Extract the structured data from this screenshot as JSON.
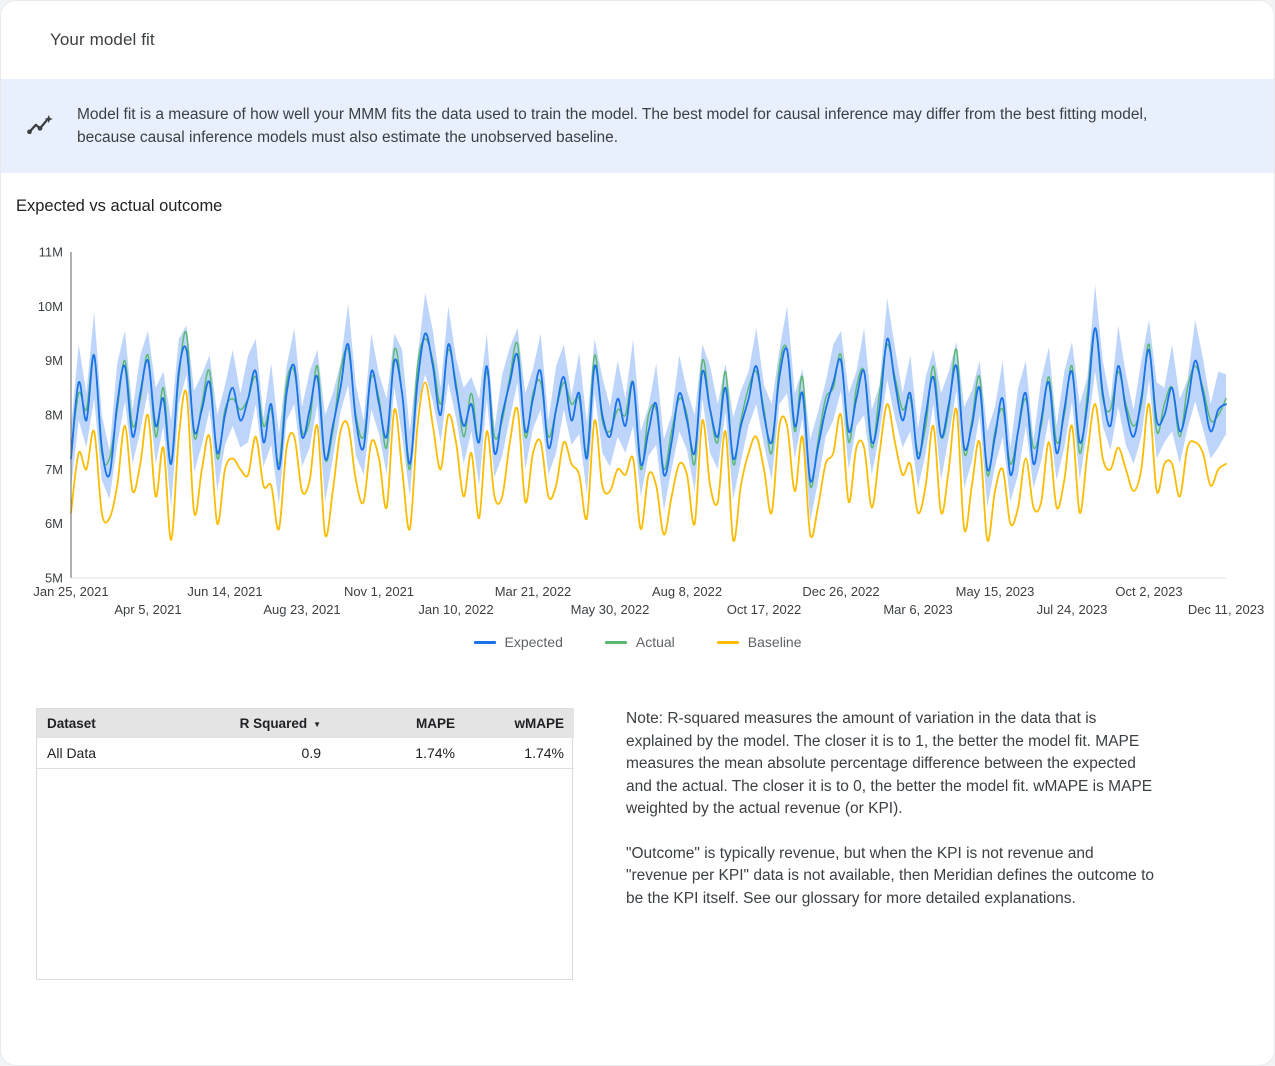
{
  "header": {
    "title": "Your model fit"
  },
  "banner": {
    "icon": "insights-icon",
    "background": "#e8f0fe",
    "text": "Model fit is a measure of how well your MMM fits the data used to train the model. The best model for causal inference may differ from the best fitting model, because causal inference models must also estimate the unobserved baseline."
  },
  "chart_section": {
    "title": "Expected vs actual outcome"
  },
  "chart_data": {
    "type": "line",
    "title": "Expected vs actual outcome",
    "x_unit": "week",
    "x_start": "Jan 25, 2021",
    "x_end": "Dec 11, 2023",
    "x_tick_labels": [
      "Jan 25, 2021",
      "Apr 5, 2021",
      "Jun 14, 2021",
      "Aug 23, 2021",
      "Nov 1, 2021",
      "Jan 10, 2022",
      "Mar 21, 2022",
      "May 30, 2022",
      "Aug 8, 2022",
      "Oct 17, 2022",
      "Dec 26, 2022",
      "Mar 6, 2023",
      "May 15, 2023",
      "Jul 24, 2023",
      "Oct 2, 2023",
      "Dec 11, 2023"
    ],
    "y_tick_labels": [
      "5M",
      "6M",
      "7M",
      "8M",
      "9M",
      "10M",
      "11M"
    ],
    "ylim": [
      5,
      11
    ],
    "y_unit": "millions",
    "grid": false,
    "legend_position": "bottom",
    "series": [
      {
        "name": "Expected",
        "color": "#1a73e8",
        "width": 1.8,
        "values": [
          7.2,
          8.6,
          7.9,
          9.1,
          7.4,
          6.9,
          8.2,
          8.9,
          7.6,
          8.4,
          9.0,
          7.8,
          8.3,
          7.1,
          8.8,
          9.2,
          7.7,
          8.1,
          8.6,
          7.3,
          8.0,
          8.5,
          7.9,
          8.3,
          8.8,
          7.5,
          8.2,
          7.0,
          8.4,
          8.9,
          7.6,
          8.1,
          8.7,
          7.2,
          7.8,
          8.5,
          9.3,
          7.9,
          7.4,
          8.8,
          8.2,
          7.6,
          9.0,
          8.4,
          7.1,
          8.6,
          9.5,
          8.9,
          8.0,
          9.3,
          8.5,
          7.8,
          8.2,
          7.5,
          8.9,
          7.3,
          8.0,
          8.6,
          9.1,
          7.7,
          8.3,
          8.8,
          7.4,
          8.1,
          8.7,
          7.9,
          8.4,
          7.2,
          8.9,
          8.0,
          7.6,
          8.3,
          7.8,
          8.6,
          7.1,
          7.7,
          8.2,
          6.9,
          7.5,
          8.4,
          7.9,
          7.3,
          8.8,
          8.1,
          7.6,
          8.5,
          7.2,
          7.8,
          8.3,
          8.9,
          8.0,
          7.5,
          8.7,
          9.2,
          7.8,
          8.4,
          6.8,
          7.4,
          8.1,
          8.6,
          9.0,
          7.7,
          8.3,
          8.8,
          7.5,
          8.1,
          9.4,
          8.6,
          7.9,
          8.4,
          7.2,
          8.0,
          8.7,
          7.6,
          8.2,
          8.9,
          7.4,
          7.8,
          8.5,
          7.0,
          7.6,
          8.3,
          6.9,
          7.7,
          8.4,
          7.1,
          7.9,
          8.6,
          7.3,
          8.1,
          8.8,
          7.5,
          8.2,
          9.6,
          8.4,
          7.8,
          8.9,
          8.1,
          7.6,
          8.3,
          9.2,
          7.9,
          8.0,
          8.5,
          7.7,
          8.2,
          9.0,
          8.4,
          7.7,
          8.1,
          8.2
        ]
      },
      {
        "name": "Actual",
        "color": "#5bb974",
        "width": 1.5,
        "values": [
          7.3,
          8.4,
          8.1,
          9.1,
          7.3,
          7.2,
          8.1,
          9.0,
          7.8,
          8.3,
          9.1,
          7.6,
          8.5,
          7.1,
          8.7,
          9.5,
          7.6,
          8.2,
          8.8,
          7.2,
          8.1,
          8.3,
          8.1,
          8.3,
          8.7,
          7.8,
          8.1,
          7.1,
          8.6,
          8.8,
          7.7,
          7.9,
          8.9,
          7.2,
          7.7,
          8.8,
          9.2,
          8.0,
          7.6,
          8.7,
          8.3,
          7.4,
          9.2,
          8.4,
          7.0,
          8.9,
          9.4,
          9.0,
          8.2,
          9.2,
          8.6,
          7.6,
          8.4,
          7.5,
          8.8,
          7.6,
          7.9,
          8.7,
          9.3,
          7.6,
          8.4,
          8.6,
          7.6,
          8.1,
          8.6,
          8.2,
          8.3,
          7.3,
          9.1,
          7.9,
          7.7,
          8.1,
          8.0,
          8.6,
          7.0,
          8.0,
          8.1,
          7.0,
          7.7,
          8.3,
          8.0,
          7.1,
          9.0,
          8.1,
          7.5,
          8.8,
          7.1,
          7.9,
          8.5,
          8.8,
          8.1,
          7.3,
          8.9,
          9.2,
          7.7,
          8.7,
          6.7,
          7.5,
          8.3,
          8.5,
          9.1,
          7.5,
          8.5,
          8.8,
          7.4,
          8.4,
          9.3,
          8.7,
          8.1,
          8.3,
          7.3,
          7.8,
          8.9,
          7.6,
          8.1,
          9.2,
          7.3,
          7.9,
          8.7,
          6.9,
          7.7,
          8.1,
          7.1,
          7.7,
          8.3,
          7.4,
          7.8,
          8.7,
          7.5,
          8.0,
          8.9,
          7.3,
          8.4,
          9.6,
          8.3,
          8.1,
          8.8,
          8.2,
          7.8,
          8.2,
          9.3,
          7.7,
          8.2,
          8.5,
          7.6,
          8.5,
          8.9,
          8.5,
          7.9,
          8.0,
          8.3
        ]
      },
      {
        "name": "Baseline",
        "color": "#fbbc04",
        "width": 1.8,
        "values": [
          6.2,
          7.3,
          7.0,
          7.7,
          6.2,
          6.1,
          6.7,
          7.8,
          6.6,
          7.1,
          8.0,
          6.5,
          7.4,
          5.7,
          7.6,
          8.4,
          6.2,
          7.0,
          7.6,
          6.0,
          7.0,
          7.2,
          7.0,
          6.9,
          7.6,
          6.7,
          6.7,
          5.9,
          7.4,
          7.6,
          6.6,
          6.8,
          7.8,
          5.8,
          6.6,
          7.7,
          7.8,
          6.8,
          6.4,
          7.5,
          7.2,
          6.3,
          8.1,
          7.0,
          5.9,
          7.8,
          8.6,
          7.8,
          7.0,
          8.0,
          7.5,
          6.5,
          7.3,
          6.1,
          7.7,
          6.5,
          6.5,
          7.5,
          8.1,
          6.4,
          7.3,
          7.5,
          6.5,
          6.7,
          7.5,
          7.1,
          6.9,
          6.1,
          7.9,
          6.7,
          6.6,
          7.0,
          6.9,
          7.2,
          5.9,
          6.9,
          6.7,
          5.8,
          6.5,
          7.1,
          6.9,
          6.0,
          7.9,
          6.7,
          6.4,
          7.7,
          5.7,
          6.7,
          7.3,
          7.6,
          7.0,
          6.2,
          7.8,
          7.8,
          6.6,
          7.6,
          5.8,
          6.3,
          7.1,
          7.3,
          8.0,
          6.4,
          7.4,
          7.4,
          6.3,
          7.3,
          8.2,
          7.5,
          6.9,
          7.1,
          6.2,
          6.7,
          7.8,
          6.2,
          7.0,
          8.1,
          5.9,
          6.7,
          7.5,
          5.7,
          6.6,
          7.0,
          6.0,
          6.3,
          7.2,
          6.3,
          6.4,
          7.5,
          6.3,
          6.8,
          7.8,
          6.2,
          7.3,
          8.2,
          7.2,
          7.0,
          7.4,
          7.0,
          6.6,
          7.0,
          8.2,
          6.6,
          7.1,
          7.1,
          6.5,
          7.4,
          7.5,
          7.3,
          6.7,
          7.0,
          7.1
        ]
      }
    ],
    "band": {
      "name": "Expected credible interval",
      "around_series": "Expected",
      "color": "#a8c7fa",
      "opacity": 0.75,
      "halfwidth_cycle": [
        0.55,
        0.7,
        0.5,
        0.8,
        0.6,
        0.45,
        0.75,
        0.65,
        0.5,
        0.7
      ]
    }
  },
  "table": {
    "sort_icon": "▼",
    "columns": [
      {
        "label": "Dataset",
        "align": "left"
      },
      {
        "label": "R Squared",
        "align": "right",
        "sorted": "desc"
      },
      {
        "label": "MAPE",
        "align": "right"
      },
      {
        "label": "wMAPE",
        "align": "right"
      }
    ],
    "rows": [
      [
        "All Data",
        "0.9",
        "1.74%",
        "1.74%"
      ]
    ]
  },
  "note": {
    "paragraph1": "Note: R-squared measures the amount of variation in the data that is explained by the model. The closer it is to 1, the better the model fit. MAPE measures the mean absolute percentage difference between the expected and the actual. The closer it is to 0, the better the model fit. wMAPE is MAPE weighted by the actual revenue (or KPI).",
    "paragraph2": "\"Outcome\" is typically revenue, but when the KPI is not revenue and \"revenue per KPI\" data is not available, then Meridian defines the outcome to be the KPI itself. See our glossary for more detailed explanations."
  },
  "colors": {
    "expected": "#1a73e8",
    "actual": "#5bb974",
    "baseline": "#fbbc04",
    "band": "#a8c7fa",
    "banner_background": "#e8f0fe",
    "table_header_background": "#e4e4e4"
  }
}
